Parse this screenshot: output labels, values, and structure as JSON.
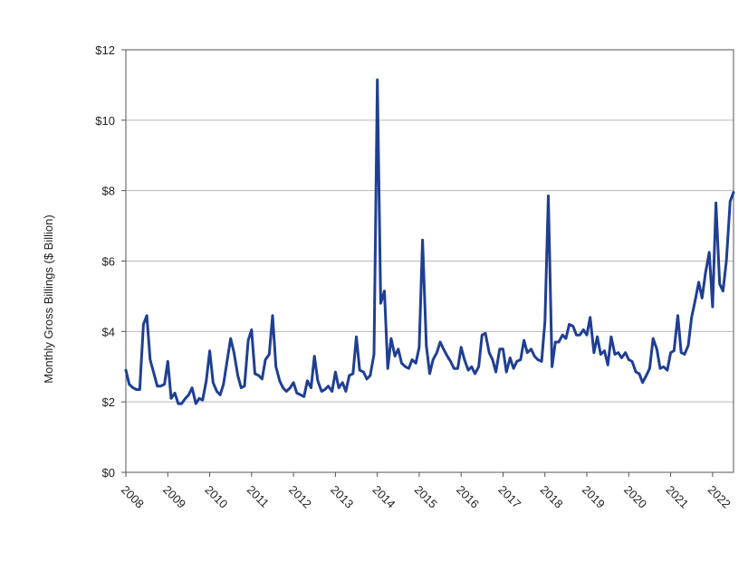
{
  "chart_data": {
    "type": "line",
    "title": "",
    "xlabel": "",
    "ylabel": "Monthly Gross Billings ($ Billion)",
    "ylim": [
      0,
      12
    ],
    "xlim": [
      2008.0,
      2022.5
    ],
    "y_ticks": [
      {
        "value": 0,
        "label": "$0"
      },
      {
        "value": 2,
        "label": "$2"
      },
      {
        "value": 4,
        "label": "$4"
      },
      {
        "value": 6,
        "label": "$6"
      },
      {
        "value": 8,
        "label": "$8"
      },
      {
        "value": 10,
        "label": "$10"
      },
      {
        "value": 12,
        "label": "$12"
      }
    ],
    "x_ticks": [
      {
        "value": 2008,
        "label": "2008"
      },
      {
        "value": 2009,
        "label": "2009"
      },
      {
        "value": 2010,
        "label": "2010"
      },
      {
        "value": 2011,
        "label": "2011"
      },
      {
        "value": 2012,
        "label": "2012"
      },
      {
        "value": 2013,
        "label": "2013"
      },
      {
        "value": 2014,
        "label": "2014"
      },
      {
        "value": 2015,
        "label": "2015"
      },
      {
        "value": 2016,
        "label": "2016"
      },
      {
        "value": 2017,
        "label": "2017"
      },
      {
        "value": 2018,
        "label": "2018"
      },
      {
        "value": 2019,
        "label": "2019"
      },
      {
        "value": 2020,
        "label": "2020"
      },
      {
        "value": 2021,
        "label": "2021"
      },
      {
        "value": 2022,
        "label": "2022"
      }
    ],
    "grid": "horizontal",
    "line_color": "#1f3f93",
    "series": [
      {
        "x": [
          2008.0,
          2008.08,
          2008.17,
          2008.25,
          2008.33,
          2008.42,
          2008.5,
          2008.58,
          2008.67,
          2008.75,
          2008.83,
          2008.92,
          2009.0,
          2009.08,
          2009.17,
          2009.25,
          2009.33,
          2009.42,
          2009.5,
          2009.58,
          2009.67,
          2009.75,
          2009.83,
          2009.92,
          2010.0,
          2010.08,
          2010.17,
          2010.25,
          2010.33,
          2010.42,
          2010.5,
          2010.58,
          2010.67,
          2010.75,
          2010.83,
          2010.92,
          2011.0,
          2011.08,
          2011.17,
          2011.25,
          2011.33,
          2011.42,
          2011.5,
          2011.58,
          2011.67,
          2011.75,
          2011.83,
          2011.92,
          2012.0,
          2012.08,
          2012.17,
          2012.25,
          2012.33,
          2012.42,
          2012.5,
          2012.58,
          2012.67,
          2012.75,
          2012.83,
          2012.92,
          2013.0,
          2013.08,
          2013.17,
          2013.25,
          2013.33,
          2013.42,
          2013.5,
          2013.58,
          2013.67,
          2013.75,
          2013.83,
          2013.92,
          2014.0,
          2014.08,
          2014.17,
          2014.25,
          2014.33,
          2014.42,
          2014.5,
          2014.58,
          2014.67,
          2014.75,
          2014.83,
          2014.92,
          2015.0,
          2015.08,
          2015.17,
          2015.25,
          2015.33,
          2015.42,
          2015.5,
          2015.58,
          2015.67,
          2015.75,
          2015.83,
          2015.92,
          2016.0,
          2016.08,
          2016.17,
          2016.25,
          2016.33,
          2016.42,
          2016.5,
          2016.58,
          2016.67,
          2016.75,
          2016.83,
          2016.92,
          2017.0,
          2017.08,
          2017.17,
          2017.25,
          2017.33,
          2017.42,
          2017.5,
          2017.58,
          2017.67,
          2017.75,
          2017.83,
          2017.92,
          2018.0,
          2018.08,
          2018.17,
          2018.25,
          2018.33,
          2018.42,
          2018.5,
          2018.58,
          2018.67,
          2018.75,
          2018.83,
          2018.92,
          2019.0,
          2019.08,
          2019.17,
          2019.25,
          2019.33,
          2019.42,
          2019.5,
          2019.58,
          2019.67,
          2019.75,
          2019.83,
          2019.92,
          2020.0,
          2020.08,
          2020.17,
          2020.25,
          2020.33,
          2020.42,
          2020.5,
          2020.58,
          2020.67,
          2020.75,
          2020.83,
          2020.92,
          2021.0,
          2021.08,
          2021.17,
          2021.25,
          2021.33,
          2021.42,
          2021.5,
          2021.58,
          2021.67,
          2021.75,
          2021.83,
          2021.92,
          2022.0,
          2022.08,
          2022.17,
          2022.25,
          2022.33,
          2022.42,
          2022.5
        ],
        "values": [
          2.9,
          2.5,
          2.4,
          2.35,
          2.35,
          4.2,
          4.45,
          3.2,
          2.8,
          2.45,
          2.45,
          2.5,
          3.15,
          2.1,
          2.25,
          1.95,
          1.95,
          2.1,
          2.2,
          2.4,
          1.95,
          2.1,
          2.05,
          2.6,
          3.45,
          2.55,
          2.3,
          2.2,
          2.5,
          3.2,
          3.8,
          3.4,
          2.75,
          2.4,
          2.45,
          3.75,
          4.05,
          2.8,
          2.75,
          2.65,
          3.2,
          3.35,
          4.45,
          3.0,
          2.6,
          2.4,
          2.3,
          2.4,
          2.55,
          2.25,
          2.2,
          2.15,
          2.6,
          2.4,
          3.3,
          2.6,
          2.3,
          2.35,
          2.45,
          2.3,
          2.85,
          2.4,
          2.55,
          2.3,
          2.75,
          2.8,
          3.85,
          2.9,
          2.85,
          2.65,
          2.75,
          3.35,
          11.15,
          4.8,
          5.15,
          2.95,
          3.8,
          3.3,
          3.5,
          3.1,
          3.0,
          2.95,
          3.2,
          3.1,
          3.55,
          6.6,
          3.6,
          2.8,
          3.2,
          3.4,
          3.7,
          3.5,
          3.3,
          3.15,
          2.95,
          2.95,
          3.55,
          3.2,
          2.9,
          3.0,
          2.8,
          3.0,
          3.9,
          3.95,
          3.4,
          3.2,
          2.85,
          3.5,
          3.5,
          2.85,
          3.25,
          2.95,
          3.15,
          3.2,
          3.75,
          3.4,
          3.5,
          3.3,
          3.2,
          3.15,
          4.3,
          7.85,
          3.0,
          3.7,
          3.7,
          3.9,
          3.8,
          4.2,
          4.15,
          3.9,
          3.9,
          4.05,
          3.9,
          4.4,
          3.4,
          3.85,
          3.35,
          3.45,
          3.05,
          3.85,
          3.35,
          3.4,
          3.25,
          3.4,
          3.2,
          3.15,
          2.85,
          2.8,
          2.55,
          2.75,
          2.95,
          3.8,
          3.5,
          2.95,
          3.0,
          2.9,
          3.4,
          3.45,
          4.45,
          3.4,
          3.35,
          3.6,
          4.4,
          4.85,
          5.4,
          4.95,
          5.65,
          6.25,
          4.7,
          7.65,
          5.35,
          5.15,
          6.0,
          7.7,
          7.95
        ]
      }
    ]
  }
}
